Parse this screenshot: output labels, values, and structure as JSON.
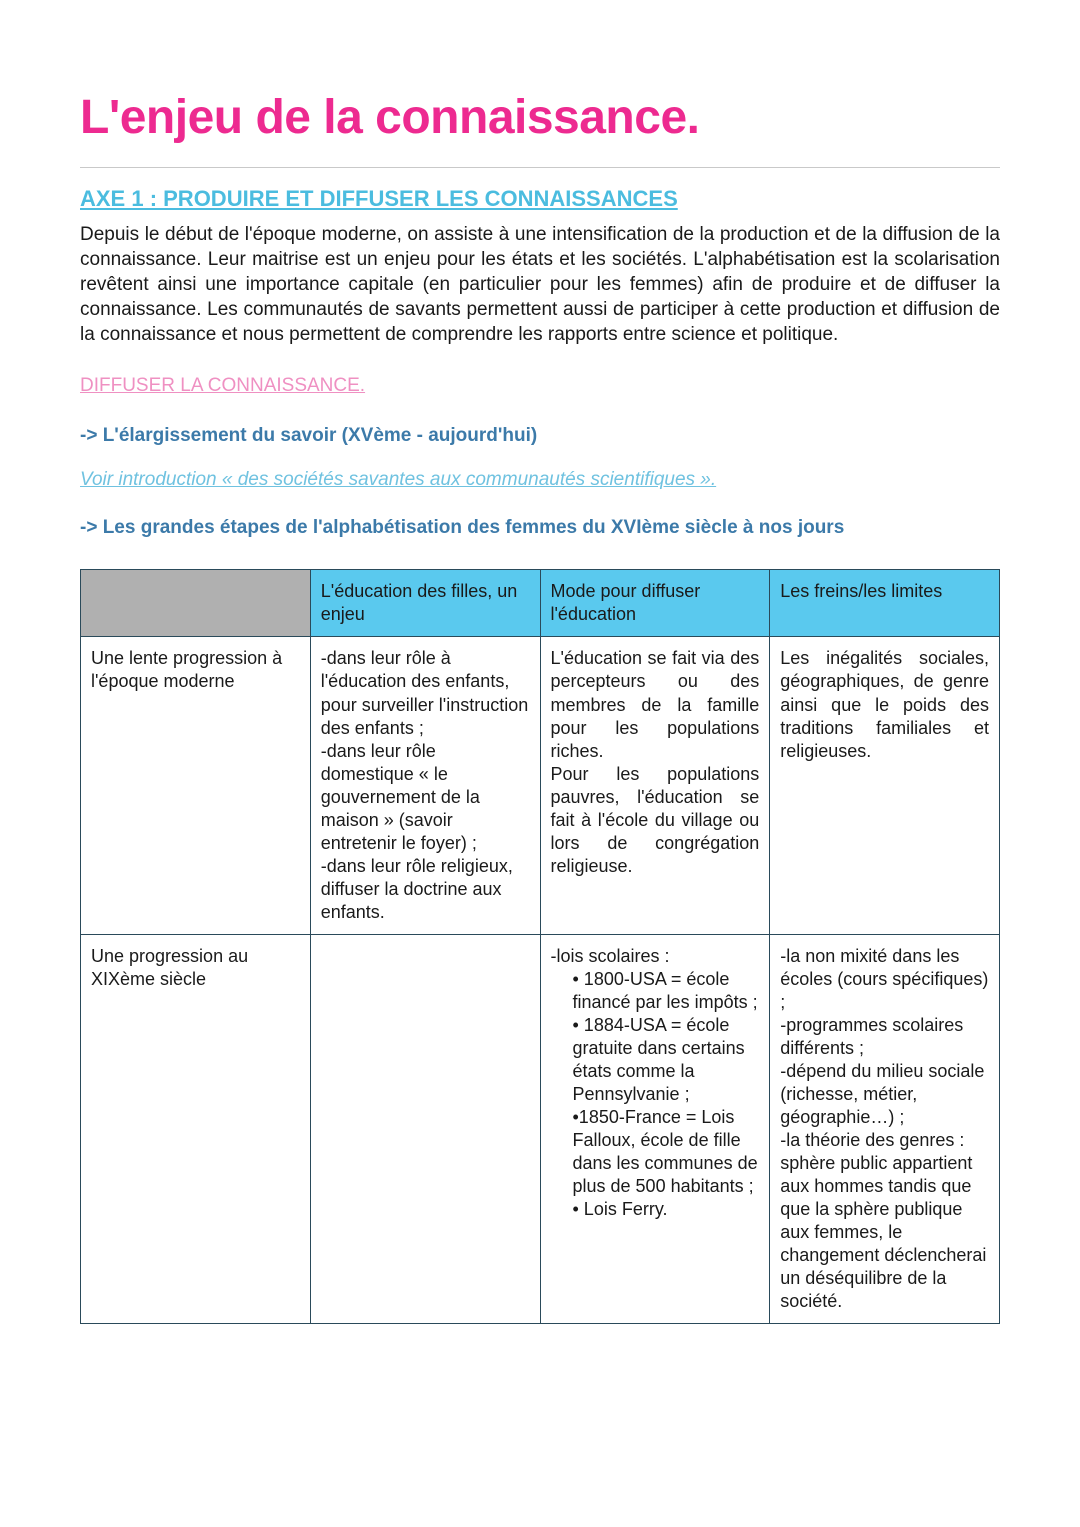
{
  "colors": {
    "title": "#ed2a90",
    "hr": "#c9c9c9",
    "axe": "#4bbcdf",
    "body": "#1a1a1a",
    "sub1": "#ef90c2",
    "arrow": "#3c7aa9",
    "ital": "#6fc2e0",
    "table_border": "#2a4a5a",
    "table_header_bg": "#5ac9ee",
    "table_header_blank_bg": "#b0b0b0",
    "table_text": "#1a1a1a"
  },
  "fonts": {
    "title_size": 48,
    "axe_size": 22,
    "body_size": 19,
    "sub_size": 19,
    "arrow_size": 19,
    "table_size": 18
  },
  "title": "L'enjeu de la connaissance.",
  "axe_heading": "AXE 1 : PRODUIRE ET DIFFUSER LES CONNAISSANCES",
  "intro_paragraph": "Depuis le début de l'époque moderne, on assiste à une intensification de la production et de la diffusion de la connaissance. Leur maitrise est un enjeu pour les états et les sociétés. L'alphabétisation est la scolarisation revêtent ainsi une importance capitale (en particulier pour les femmes) afin de produire et de diffuser la connaissance. Les communautés de savants permettent aussi de participer à cette production et diffusion de la connaissance et nous permettent de comprendre les rapports entre science et politique.",
  "sub1": "DIFFUSER LA CONNAISSANCE.",
  "arrow1": "-> L'élargissement du savoir (XVème - aujourd'hui)",
  "ital_line": "Voir introduction « des sociétés savantes aux communautés scientifiques ».",
  "arrow2": "-> Les grandes étapes de l'alphabétisation des femmes du XVIème siècle à nos jours",
  "table": {
    "col_widths_pct": [
      25,
      25,
      25,
      25
    ],
    "headers": [
      "",
      "L'éducation des filles, un enjeu",
      "Mode pour diffuser l'éducation",
      "Les freins/les limites"
    ],
    "rows": [
      {
        "label": "Une lente progression à l'époque moderne",
        "c1_lines": [
          "-dans leur rôle à l'éducation des enfants, pour surveiller l'instruction des enfants ;",
          "-dans leur rôle domestique « le gouvernement de la maison » (savoir entretenir le foyer) ;",
          "-dans leur rôle religieux, diffuser la doctrine aux enfants."
        ],
        "c2_justify_lines": [
          "L'éducation se fait via des percepteurs ou des membres de la famille pour les populations riches.",
          "Pour les populations pauvres, l'éducation se fait à l'école du village ou lors de congrégation religieuse."
        ],
        "c3_justify": "Les inégalités sociales, géographiques, de genre ainsi que le poids des traditions familiales et religieuses."
      },
      {
        "label": "Une progression au XIXème siècle",
        "c1_lines": [],
        "c2_head": "-lois scolaires :",
        "c2_bullets": [
          "• 1800-USA = école financé par les impôts ;",
          "• 1884-USA = école gratuite dans certains états comme la Pennsylvanie ;",
          "•1850-France = Lois Falloux, école de fille dans les communes de plus de 500 habitants ;",
          "• Lois Ferry."
        ],
        "c3_lines": [
          "-la non mixité dans les écoles (cours spécifiques) ;",
          "-programmes scolaires différents ;",
          "-dépend du milieu sociale (richesse, métier, géographie…) ;",
          "-la théorie des genres : sphère public appartient aux hommes tandis que que la sphère publique aux femmes, le changement déclencherai un déséquilibre de la société."
        ]
      }
    ]
  }
}
